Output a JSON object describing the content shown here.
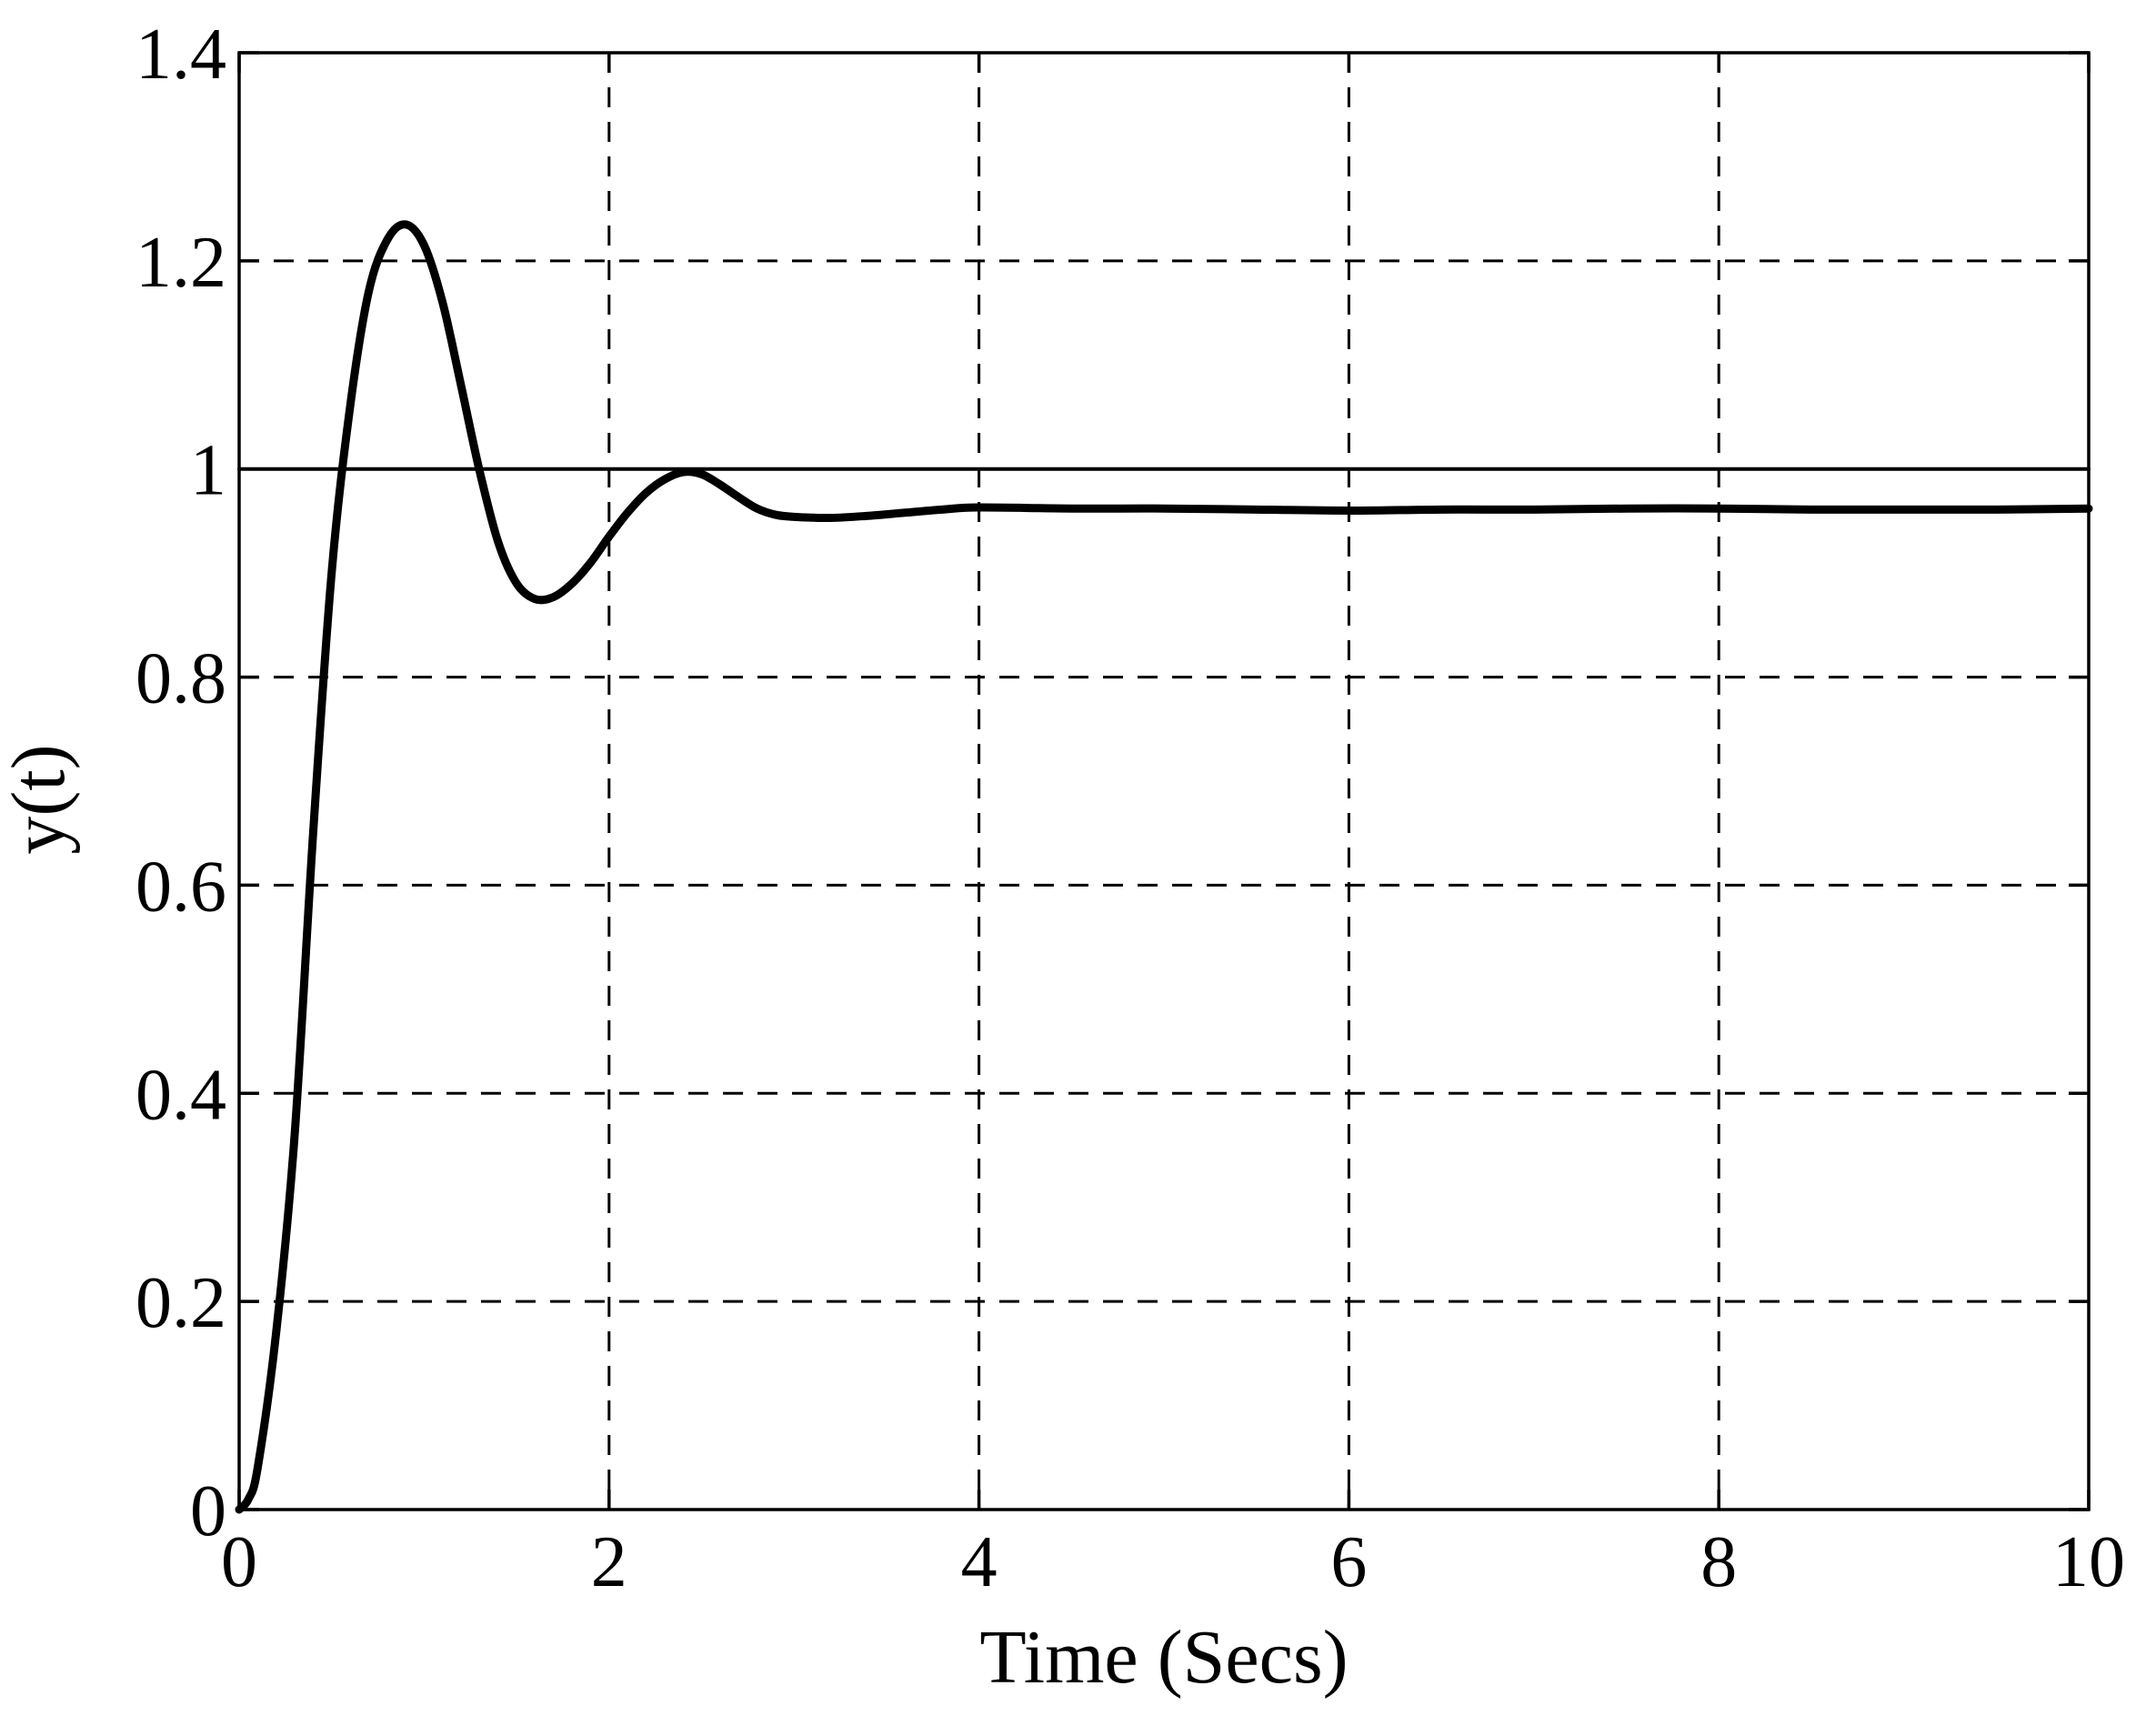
{
  "chart_data": {
    "type": "line",
    "title": "",
    "xlabel": "Time (Secs)",
    "ylabel": "y(t)",
    "xlim": [
      0,
      10
    ],
    "ylim": [
      0,
      1.4
    ],
    "xticks": [
      0,
      2,
      4,
      6,
      8,
      10
    ],
    "xtick_labels": [
      "0",
      "2",
      "4",
      "6",
      "8",
      "10"
    ],
    "yticks": [
      0,
      0.2,
      0.4,
      0.6,
      0.8,
      1,
      1.2,
      1.4
    ],
    "ytick_labels": [
      "0",
      "0.2",
      "0.4",
      "0.6",
      "0.8",
      "1",
      "1.2",
      "1.4"
    ],
    "grid": true,
    "legend": "none",
    "line_color": "#000000",
    "series": [
      {
        "style": "thin",
        "x": [
          0,
          10
        ],
        "y": [
          1.0,
          1.0
        ]
      },
      {
        "style": "thick",
        "x": [
          0,
          0.05,
          0.1,
          0.2,
          0.3,
          0.4,
          0.5,
          0.6,
          0.7,
          0.8,
          0.9,
          1.0,
          1.1,
          1.2,
          1.3,
          1.4,
          1.5,
          1.6,
          1.7,
          1.8,
          1.9,
          2.0,
          2.1,
          2.2,
          2.3,
          2.4,
          2.5,
          2.6,
          2.7,
          2.8,
          2.9,
          3.0,
          3.2,
          3.4,
          3.6,
          3.8,
          4.0,
          4.5,
          5.0,
          5.5,
          6.0,
          6.5,
          7.0,
          7.5,
          8.0,
          8.5,
          9.0,
          9.5,
          10.0
        ],
        "y": [
          0.0,
          0.01,
          0.04,
          0.17,
          0.36,
          0.65,
          0.9,
          1.06,
          1.17,
          1.22,
          1.235,
          1.215,
          1.16,
          1.08,
          0.998,
          0.93,
          0.89,
          0.875,
          0.877,
          0.89,
          0.91,
          0.935,
          0.958,
          0.977,
          0.99,
          0.997,
          0.995,
          0.985,
          0.973,
          0.962,
          0.956,
          0.954,
          0.953,
          0.955,
          0.958,
          0.961,
          0.963,
          0.962,
          0.962,
          0.961,
          0.96,
          0.961,
          0.961,
          0.962,
          0.962,
          0.961,
          0.961,
          0.961,
          0.962
        ]
      }
    ]
  }
}
